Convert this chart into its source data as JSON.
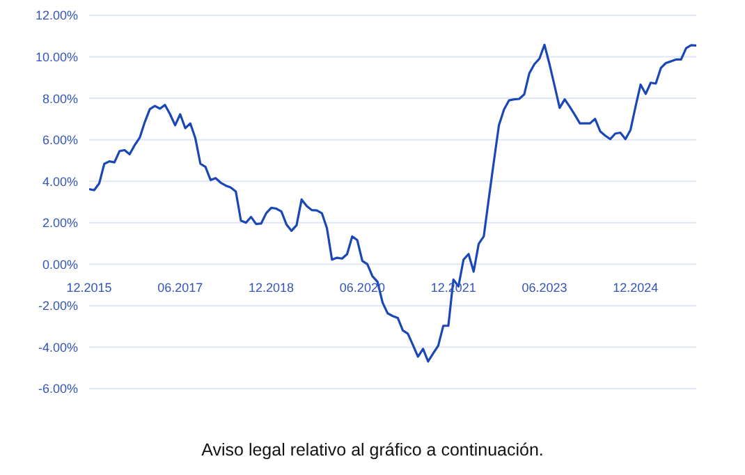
{
  "chart_data": {
    "type": "line",
    "x": [
      "2015-12",
      "2016-01",
      "2016-02",
      "2016-03",
      "2016-04",
      "2016-05",
      "2016-06",
      "2016-07",
      "2016-08",
      "2016-09",
      "2016-10",
      "2016-11",
      "2016-12",
      "2017-01",
      "2017-02",
      "2017-03",
      "2017-04",
      "2017-05",
      "2017-06",
      "2017-07",
      "2017-08",
      "2017-09",
      "2017-10",
      "2017-11",
      "2017-12",
      "2018-01",
      "2018-02",
      "2018-03",
      "2018-04",
      "2018-05",
      "2018-06",
      "2018-07",
      "2018-08",
      "2018-09",
      "2018-10",
      "2018-11",
      "2018-12",
      "2019-01",
      "2019-02",
      "2019-03",
      "2019-04",
      "2019-05",
      "2019-06",
      "2019-07",
      "2019-08",
      "2019-09",
      "2019-10",
      "2019-11",
      "2019-12",
      "2020-01",
      "2020-02",
      "2020-03",
      "2020-04",
      "2020-05",
      "2020-06",
      "2020-07",
      "2020-08",
      "2020-09",
      "2020-10",
      "2020-11",
      "2020-12",
      "2021-01",
      "2021-02",
      "2021-03",
      "2021-04",
      "2021-05",
      "2021-06",
      "2021-07",
      "2021-08",
      "2021-09",
      "2021-10",
      "2021-11",
      "2021-12",
      "2022-01",
      "2022-02",
      "2022-03",
      "2022-04",
      "2022-05",
      "2022-06",
      "2022-07",
      "2022-08",
      "2022-09",
      "2022-10",
      "2022-11",
      "2022-12",
      "2023-01",
      "2023-02",
      "2023-03",
      "2023-04",
      "2023-05",
      "2023-06",
      "2023-07",
      "2023-08",
      "2023-09",
      "2023-10",
      "2023-11",
      "2023-12",
      "2024-01",
      "2024-02",
      "2024-03",
      "2024-04",
      "2024-05",
      "2024-06",
      "2024-07",
      "2024-08",
      "2024-09",
      "2024-10",
      "2024-11",
      "2024-12",
      "2025-01",
      "2025-02",
      "2025-03",
      "2025-04",
      "2025-05",
      "2025-06",
      "2025-07",
      "2025-08",
      "2025-09",
      "2025-10",
      "2025-11",
      "2025-12"
    ],
    "series": [
      {
        "color": "#1a47b8",
        "values": [
          3.62,
          3.57,
          3.9,
          4.84,
          4.96,
          4.91,
          5.45,
          5.5,
          5.3,
          5.74,
          6.1,
          6.85,
          7.48,
          7.63,
          7.5,
          7.68,
          7.23,
          6.7,
          7.23,
          6.56,
          6.79,
          6.07,
          4.84,
          4.69,
          4.06,
          4.15,
          3.93,
          3.79,
          3.7,
          3.5,
          2.1,
          2.0,
          2.28,
          1.94,
          1.96,
          2.46,
          2.72,
          2.68,
          2.54,
          1.92,
          1.61,
          1.88,
          3.12,
          2.81,
          2.61,
          2.59,
          2.46,
          1.74,
          0.22,
          0.31,
          0.27,
          0.49,
          1.34,
          1.16,
          0.16,
          0.0,
          -0.58,
          -0.85,
          -1.85,
          -2.37,
          -2.5,
          -2.59,
          -3.19,
          -3.35,
          -3.9,
          -4.46,
          -4.08,
          -4.69,
          -4.3,
          -3.93,
          -2.97,
          -2.97,
          -0.74,
          -1.07,
          0.22,
          0.49,
          -0.36,
          0.98,
          1.34,
          3.17,
          4.96,
          6.7,
          7.46,
          7.9,
          7.95,
          7.97,
          8.19,
          9.2,
          9.64,
          9.91,
          10.58,
          9.64,
          8.6,
          7.54,
          7.95,
          7.59,
          7.2,
          6.79,
          6.79,
          6.79,
          7.01,
          6.41,
          6.2,
          6.03,
          6.3,
          6.34,
          6.03,
          6.47,
          7.6,
          8.66,
          8.21,
          8.75,
          8.71,
          9.46,
          9.7,
          9.78,
          9.87,
          9.87,
          10.42,
          10.56,
          10.54
        ]
      }
    ],
    "xlim": [
      "2015-12",
      "2025-12"
    ],
    "xticks": [
      {
        "value": "2015-12",
        "label": "12.2015"
      },
      {
        "value": "2017-06",
        "label": "06.2017"
      },
      {
        "value": "2018-12",
        "label": "12.2018"
      },
      {
        "value": "2020-06",
        "label": "06.2020"
      },
      {
        "value": "2021-12",
        "label": "12.2021"
      },
      {
        "value": "2023-06",
        "label": "06.2023"
      },
      {
        "value": "2024-12",
        "label": "12.2024"
      }
    ],
    "ylim": [
      -6,
      12
    ],
    "yticks": [
      {
        "value": -6,
        "label": "-6.00%"
      },
      {
        "value": -4,
        "label": "-4.00%"
      },
      {
        "value": -2,
        "label": "-2.00%"
      },
      {
        "value": 0,
        "label": "0.00%"
      },
      {
        "value": 2,
        "label": "2.00%"
      },
      {
        "value": 4,
        "label": "4.00%"
      },
      {
        "value": 6,
        "label": "6.00%"
      },
      {
        "value": 8,
        "label": "8.00%"
      },
      {
        "value": 10,
        "label": "10.00%"
      },
      {
        "value": 12,
        "label": "12.00%"
      }
    ],
    "grid": "y",
    "marker": "none",
    "line_style": "solid",
    "annotations": [
      "Aviso legal relativo al gráfico a continuación."
    ]
  }
}
